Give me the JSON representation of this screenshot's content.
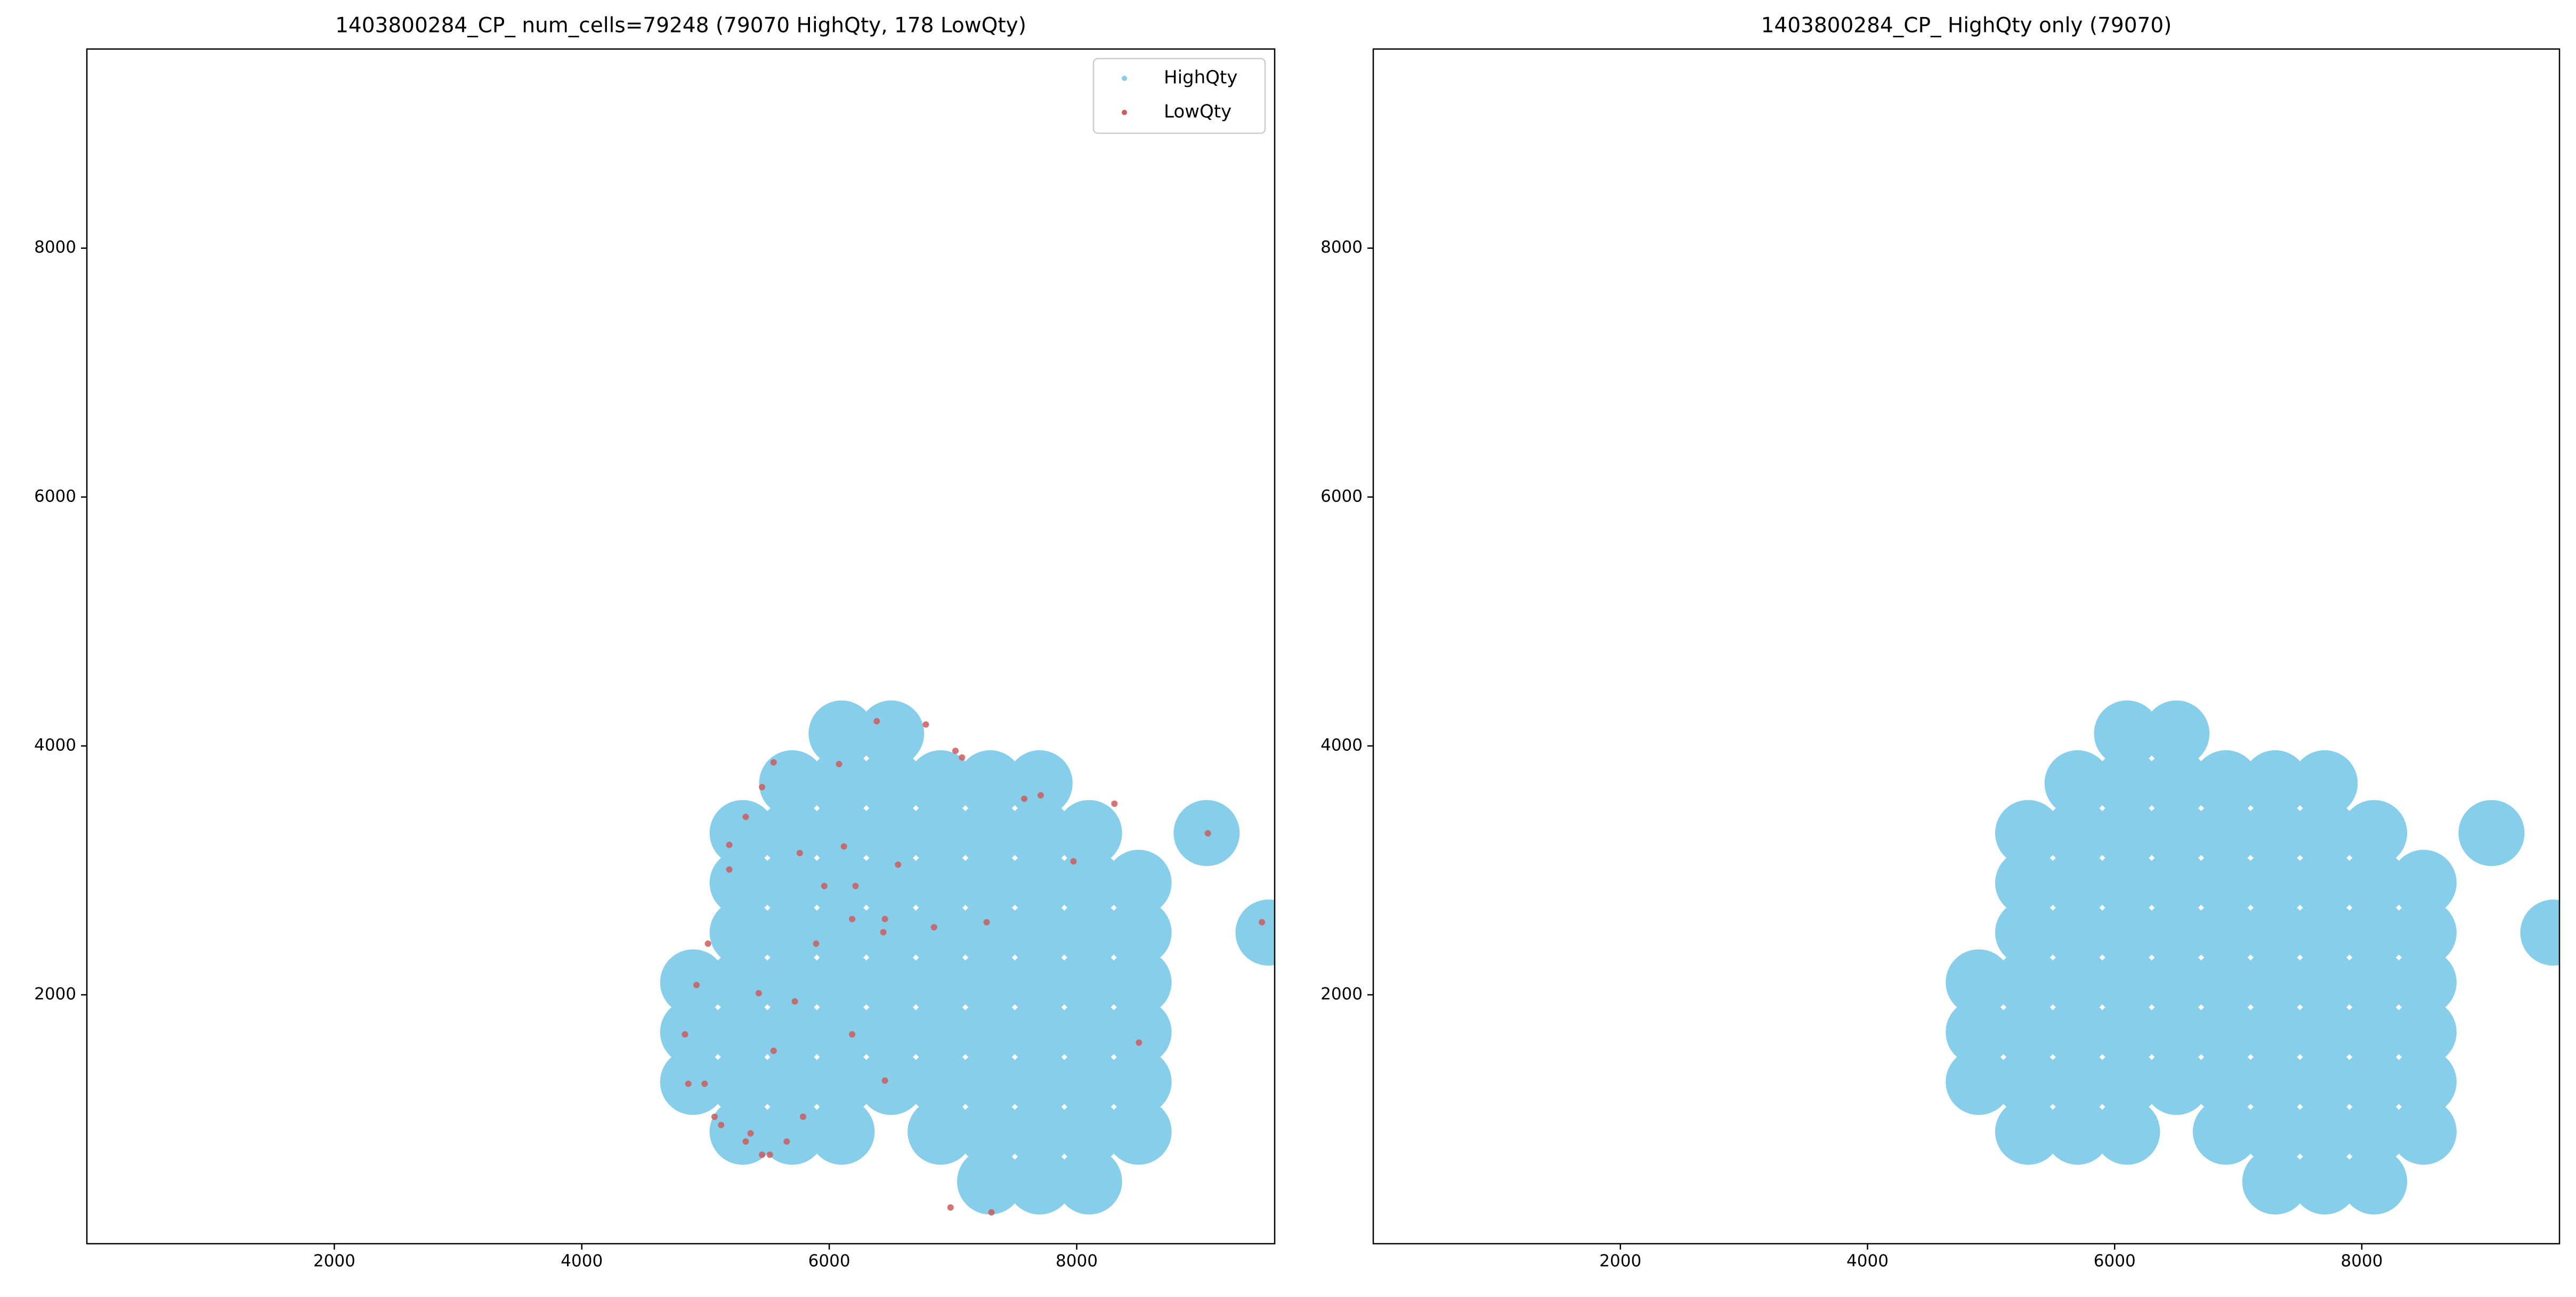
{
  "chart_data": [
    {
      "type": "scatter",
      "title": "1403800284_CP_ num_cells=79248 (79070 HighQty, 178 LowQty)",
      "xlim": [
        0,
        9600
      ],
      "ylim": [
        0,
        9600
      ],
      "xticks": [
        2000,
        4000,
        6000,
        8000
      ],
      "yticks": [
        2000,
        4000,
        6000,
        8000
      ],
      "legend": "upper right",
      "series": [
        {
          "name": "HighQty",
          "color": "#87ceeb",
          "x": [
            4900,
            4900,
            4900,
            5300,
            5300,
            5300,
            5300,
            5300,
            5300,
            5300,
            5700,
            5700,
            5700,
            5700,
            5700,
            5700,
            5700,
            5700,
            6100,
            6100,
            6100,
            6100,
            6100,
            6100,
            6100,
            6100,
            6100,
            6500,
            6500,
            6500,
            6500,
            6500,
            6500,
            6500,
            6500,
            6900,
            6900,
            6900,
            6900,
            6900,
            6900,
            6900,
            6900,
            7300,
            7300,
            7300,
            7300,
            7300,
            7300,
            7300,
            7300,
            7300,
            7700,
            7700,
            7700,
            7700,
            7700,
            7700,
            7700,
            7700,
            7700,
            8100,
            8100,
            8100,
            8100,
            8100,
            8100,
            8100,
            8100,
            8500,
            8500,
            8500,
            8500,
            8500,
            8500,
            9050,
            9550
          ],
          "values": [
            1300,
            1700,
            2100,
            900,
            1300,
            1700,
            2100,
            2500,
            2900,
            3300,
            900,
            1300,
            1700,
            2100,
            2500,
            2900,
            3300,
            3700,
            900,
            1300,
            1700,
            2100,
            2500,
            2900,
            3300,
            3700,
            4100,
            1300,
            1700,
            2100,
            2500,
            2900,
            3300,
            3700,
            4100,
            900,
            1300,
            1700,
            2100,
            2500,
            2900,
            3300,
            3700,
            500,
            900,
            1300,
            1700,
            2100,
            2500,
            2900,
            3300,
            3700,
            500,
            900,
            1300,
            1700,
            2100,
            2500,
            2900,
            3300,
            3700,
            500,
            900,
            1300,
            1700,
            2100,
            2500,
            2900,
            3300,
            900,
            1300,
            1700,
            2100,
            2500,
            2900,
            3300,
            2500
          ]
        },
        {
          "name": "LowQty",
          "color": "#cd5c5c",
          "x": [
            5457,
            5520,
            5325,
            5126,
            5073,
            4993,
            4834,
            4927,
            5020,
            5192,
            5192,
            5325,
            5457,
            5550,
            6079,
            6384,
            6781,
            7020,
            7073,
            7576,
            7709,
            8305,
            7974,
            9060,
            9497,
            5762,
            6119,
            5960,
            6212,
            6556,
            6450,
            6185,
            5894,
            6437,
            6847,
            7272,
            5430,
            5722,
            5550,
            6185,
            6450,
            5788,
            5656,
            5364,
            6980,
            7311,
            8503,
            4861
          ],
          "values": [
            715,
            715,
            821,
            954,
            1020,
            1285,
            1682,
            2079,
            2411,
            3007,
            3205,
            3430,
            3669,
            3868,
            3854,
            4199,
            4172,
            3960,
            3907,
            3576,
            3603,
            3536,
            3073,
            3298,
            2583,
            3139,
            3192,
            2874,
            2874,
            3046,
            2609,
            2609,
            2411,
            2503,
            2543,
            2583,
            2013,
            1947,
            1550,
            1682,
            1311,
            1020,
            821,
            887,
            291,
            252,
            1616,
            1285
          ]
        }
      ]
    },
    {
      "type": "scatter",
      "title": "1403800284_CP_ HighQty only (79070)",
      "xlim": [
        0,
        9600
      ],
      "ylim": [
        0,
        9600
      ],
      "xticks": [
        2000,
        4000,
        6000,
        8000
      ],
      "yticks": [
        2000,
        4000,
        6000,
        8000
      ],
      "series": [
        {
          "color": "#87ceeb",
          "x": [
            4900,
            4900,
            4900,
            5300,
            5300,
            5300,
            5300,
            5300,
            5300,
            5300,
            5700,
            5700,
            5700,
            5700,
            5700,
            5700,
            5700,
            5700,
            6100,
            6100,
            6100,
            6100,
            6100,
            6100,
            6100,
            6100,
            6100,
            6500,
            6500,
            6500,
            6500,
            6500,
            6500,
            6500,
            6500,
            6900,
            6900,
            6900,
            6900,
            6900,
            6900,
            6900,
            6900,
            7300,
            7300,
            7300,
            7300,
            7300,
            7300,
            7300,
            7300,
            7300,
            7700,
            7700,
            7700,
            7700,
            7700,
            7700,
            7700,
            7700,
            7700,
            8100,
            8100,
            8100,
            8100,
            8100,
            8100,
            8100,
            8100,
            8500,
            8500,
            8500,
            8500,
            8500,
            8500,
            9050,
            9550
          ],
          "values": [
            1300,
            1700,
            2100,
            900,
            1300,
            1700,
            2100,
            2500,
            2900,
            3300,
            900,
            1300,
            1700,
            2100,
            2500,
            2900,
            3300,
            3700,
            900,
            1300,
            1700,
            2100,
            2500,
            2900,
            3300,
            3700,
            4100,
            1300,
            1700,
            2100,
            2500,
            2900,
            3300,
            3700,
            4100,
            900,
            1300,
            1700,
            2100,
            2500,
            2900,
            3300,
            3700,
            500,
            900,
            1300,
            1700,
            2100,
            2500,
            2900,
            3300,
            3700,
            500,
            900,
            1300,
            1700,
            2100,
            2500,
            2900,
            3300,
            3700,
            500,
            900,
            1300,
            1700,
            2100,
            2500,
            2900,
            3300,
            900,
            1300,
            1700,
            2100,
            2500,
            2900,
            3300,
            2500
          ]
        }
      ]
    }
  ]
}
